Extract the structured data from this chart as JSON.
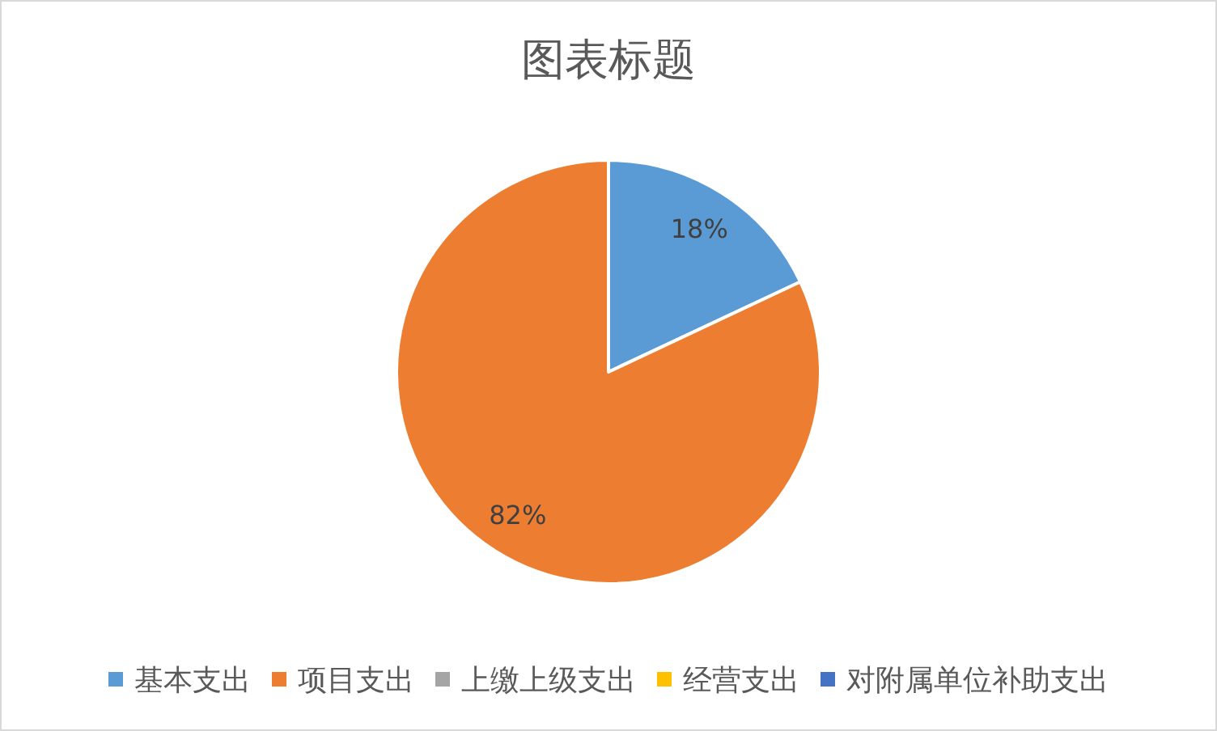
{
  "chart_data": {
    "type": "pie",
    "title": "图表标题",
    "categories": [
      "基本支出",
      "项目支出",
      "上缴上级支出",
      "经营支出",
      "对附属单位补助支出"
    ],
    "values": [
      18,
      82,
      0,
      0,
      0
    ],
    "colors": [
      "#5b9bd5",
      "#ed7d31",
      "#a5a5a5",
      "#ffc000",
      "#4472c4"
    ],
    "value_labels": [
      "18%",
      "82%",
      null,
      null,
      null
    ],
    "legend": "bottom"
  }
}
